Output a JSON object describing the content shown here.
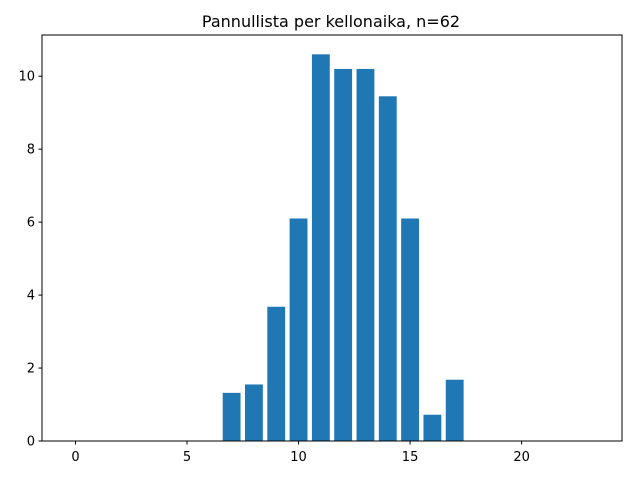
{
  "chart_data": {
    "type": "bar",
    "title": "Pannullista per kellonaika, n=62",
    "xlabel": "",
    "ylabel": "",
    "x": [
      0,
      1,
      2,
      3,
      4,
      5,
      6,
      7,
      8,
      9,
      10,
      11,
      12,
      13,
      14,
      15,
      16,
      17,
      18,
      19,
      20,
      21,
      22,
      23
    ],
    "values": [
      0,
      0,
      0,
      0,
      0,
      0,
      0,
      1.32,
      1.55,
      3.68,
      6.1,
      10.6,
      10.2,
      10.2,
      9.45,
      6.1,
      0.72,
      1.68,
      0,
      0,
      0,
      0,
      0,
      0
    ],
    "xlim": [
      -1.5,
      24.5
    ],
    "ylim": [
      0,
      11.13
    ],
    "xticks": [
      0,
      5,
      10,
      15,
      20
    ],
    "yticks": [
      0,
      2,
      4,
      6,
      8,
      10
    ],
    "bar_color": "#1f77b4",
    "grid": false,
    "legend": "none"
  }
}
